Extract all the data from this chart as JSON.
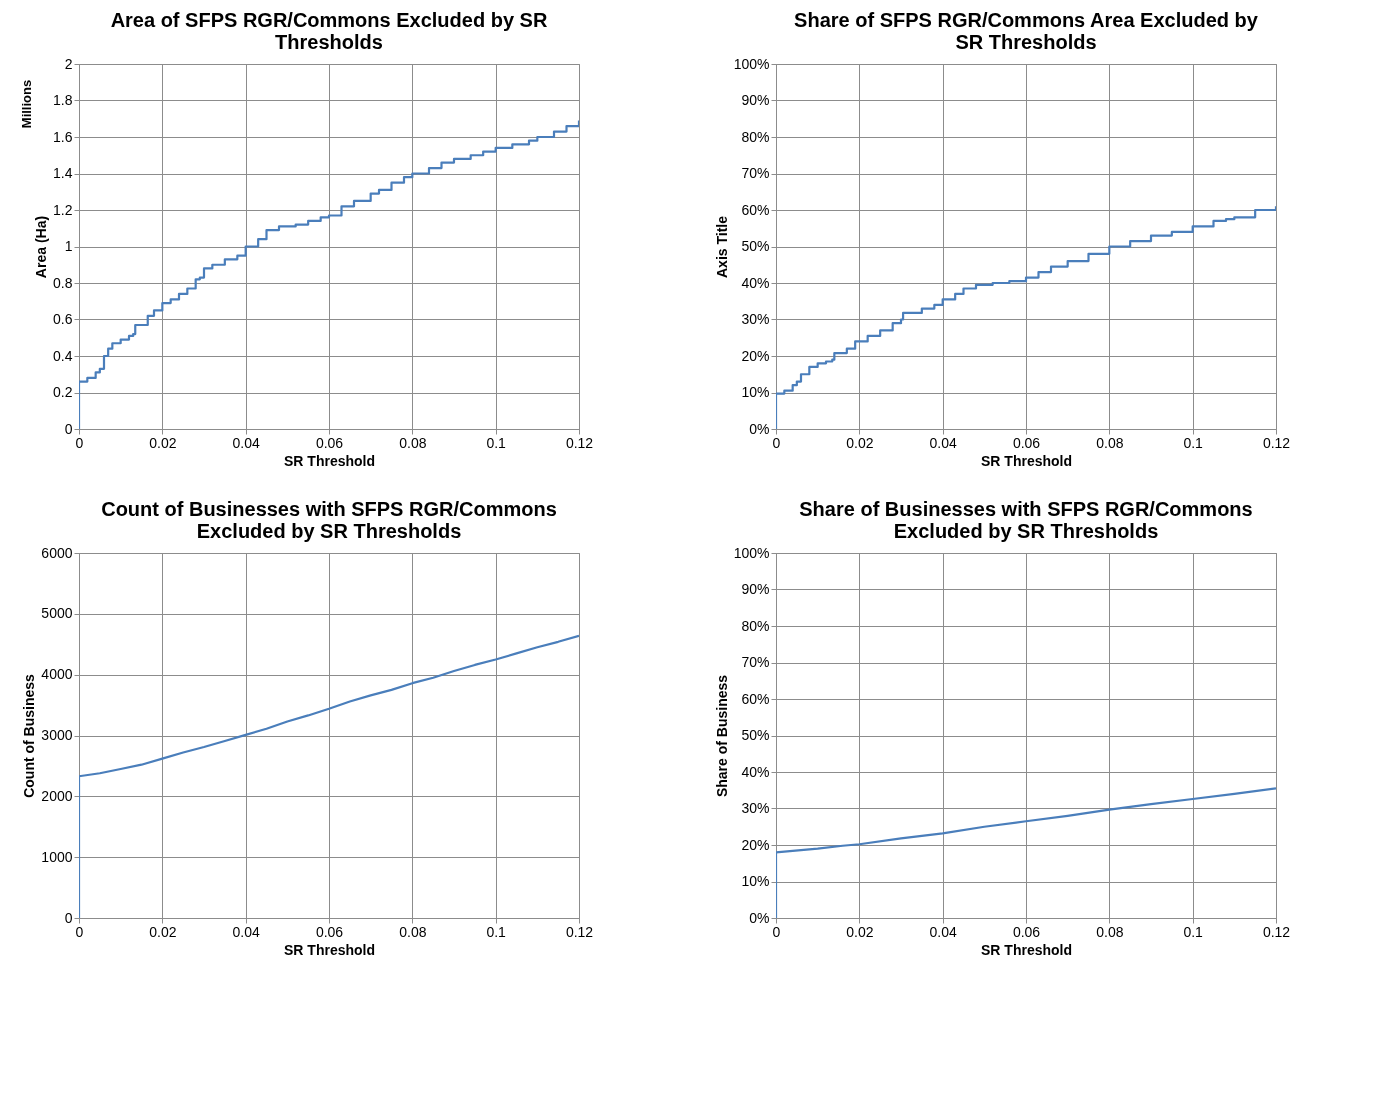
{
  "chart_data": [
    {
      "type": "step",
      "title": "Area of SFPS RGR/Commons  Excluded by SR Thresholds",
      "xlabel": "SR Threshold",
      "ylabel": "Area (Ha)",
      "annotations": [
        "Millions"
      ],
      "grid": true,
      "xlim": [
        0,
        0.12
      ],
      "xticks": [
        0,
        0.02,
        0.04,
        0.06,
        0.08,
        0.1,
        0.12
      ],
      "ylim": [
        0,
        2
      ],
      "yticks": [
        0,
        0.2,
        0.4,
        0.6,
        0.8,
        1,
        1.2,
        1.4,
        1.6,
        1.8,
        2
      ],
      "series": [
        {
          "color": "#4a7ebb",
          "x": [
            0,
            0,
            0.002,
            0.004,
            0.005,
            0.006,
            0.007,
            0.008,
            0.01,
            0.012,
            0.013,
            0.0135,
            0.016,
            0.0165,
            0.018,
            0.02,
            0.022,
            0.024,
            0.026,
            0.028,
            0.029,
            0.03,
            0.032,
            0.035,
            0.038,
            0.04,
            0.043,
            0.045,
            0.048,
            0.052,
            0.055,
            0.058,
            0.06,
            0.063,
            0.066,
            0.07,
            0.072,
            0.075,
            0.078,
            0.08,
            0.084,
            0.087,
            0.09,
            0.094,
            0.097,
            0.1,
            0.104,
            0.108,
            0.11,
            0.114,
            0.117,
            0.12
          ],
          "values": [
            0,
            0.26,
            0.28,
            0.31,
            0.33,
            0.4,
            0.44,
            0.47,
            0.49,
            0.51,
            0.52,
            0.57,
            0.57,
            0.62,
            0.65,
            0.69,
            0.71,
            0.74,
            0.77,
            0.82,
            0.83,
            0.88,
            0.9,
            0.93,
            0.95,
            1.0,
            1.04,
            1.09,
            1.11,
            1.12,
            1.14,
            1.16,
            1.17,
            1.22,
            1.25,
            1.29,
            1.31,
            1.35,
            1.38,
            1.4,
            1.43,
            1.46,
            1.48,
            1.5,
            1.52,
            1.54,
            1.56,
            1.58,
            1.6,
            1.63,
            1.66,
            1.69
          ]
        }
      ]
    },
    {
      "type": "step",
      "title": "Share of SFPS RGR/Commons  Area Excluded by SR Thresholds",
      "xlabel": "SR Threshold",
      "ylabel": "Axis Title",
      "grid": true,
      "xlim": [
        0,
        0.12
      ],
      "xticks": [
        0,
        0.02,
        0.04,
        0.06,
        0.08,
        0.1,
        0.12
      ],
      "ylim": [
        0,
        100
      ],
      "yticks": [
        {
          "value": 0,
          "label": "0%"
        },
        {
          "value": 10,
          "label": "10%"
        },
        {
          "value": 20,
          "label": "20%"
        },
        {
          "value": 30,
          "label": "30%"
        },
        {
          "value": 40,
          "label": "40%"
        },
        {
          "value": 50,
          "label": "50%"
        },
        {
          "value": 60,
          "label": "60%"
        },
        {
          "value": 70,
          "label": "70%"
        },
        {
          "value": 80,
          "label": "80%"
        },
        {
          "value": 90,
          "label": "90%"
        },
        {
          "value": 100,
          "label": "100%"
        }
      ],
      "series": [
        {
          "color": "#4a7ebb",
          "x": [
            0,
            0,
            0.002,
            0.004,
            0.005,
            0.006,
            0.008,
            0.01,
            0.012,
            0.0135,
            0.014,
            0.0165,
            0.017,
            0.019,
            0.022,
            0.025,
            0.028,
            0.03,
            0.0305,
            0.035,
            0.038,
            0.04,
            0.043,
            0.045,
            0.048,
            0.052,
            0.056,
            0.06,
            0.063,
            0.066,
            0.07,
            0.075,
            0.08,
            0.085,
            0.09,
            0.095,
            0.1,
            0.105,
            0.108,
            0.11,
            0.115,
            0.12
          ],
          "values": [
            0,
            9.7,
            10.5,
            12,
            13,
            15,
            17,
            18,
            18.5,
            19,
            20.8,
            20.8,
            22,
            24,
            25.5,
            27,
            29,
            30,
            31.8,
            33,
            34,
            35.5,
            37,
            38.5,
            39.5,
            40,
            40.5,
            41.5,
            43,
            44.5,
            46,
            48,
            50,
            51.5,
            53,
            54,
            55.5,
            57,
            57.5,
            58,
            60,
            61
          ]
        }
      ]
    },
    {
      "type": "line",
      "title": "Count of Businesses with SFPS RGR/Commons Excluded by SR Thresholds",
      "xlabel": "SR Threshold",
      "ylabel": "Count of Business",
      "grid": true,
      "xlim": [
        0,
        0.12
      ],
      "xticks": [
        0,
        0.02,
        0.04,
        0.06,
        0.08,
        0.1,
        0.12
      ],
      "ylim": [
        0,
        6000
      ],
      "yticks": [
        0,
        1000,
        2000,
        3000,
        4000,
        5000,
        6000
      ],
      "series": [
        {
          "color": "#4a7ebb",
          "x": [
            0,
            0,
            0.005,
            0.01,
            0.015,
            0.02,
            0.025,
            0.03,
            0.035,
            0.04,
            0.045,
            0.05,
            0.055,
            0.06,
            0.065,
            0.07,
            0.075,
            0.08,
            0.085,
            0.09,
            0.095,
            0.1,
            0.105,
            0.11,
            0.115,
            0.12
          ],
          "values": [
            0,
            2330,
            2380,
            2450,
            2520,
            2620,
            2720,
            2810,
            2910,
            3010,
            3110,
            3230,
            3330,
            3440,
            3560,
            3660,
            3750,
            3860,
            3950,
            4060,
            4160,
            4250,
            4350,
            4450,
            4540,
            4640
          ]
        }
      ]
    },
    {
      "type": "line",
      "title": "Share of Businesses with SFPS RGR/Commons Excluded by SR Thresholds",
      "xlabel": "SR Threshold",
      "ylabel": "Share of Business",
      "grid": true,
      "xlim": [
        0,
        0.12
      ],
      "xticks": [
        0,
        0.02,
        0.04,
        0.06,
        0.08,
        0.1,
        0.12
      ],
      "ylim": [
        0,
        100
      ],
      "yticks": [
        {
          "value": 0,
          "label": "0%"
        },
        {
          "value": 10,
          "label": "10%"
        },
        {
          "value": 20,
          "label": "20%"
        },
        {
          "value": 30,
          "label": "30%"
        },
        {
          "value": 40,
          "label": "40%"
        },
        {
          "value": 50,
          "label": "50%"
        },
        {
          "value": 60,
          "label": "60%"
        },
        {
          "value": 70,
          "label": "70%"
        },
        {
          "value": 80,
          "label": "80%"
        },
        {
          "value": 90,
          "label": "90%"
        },
        {
          "value": 100,
          "label": "100%"
        }
      ],
      "series": [
        {
          "color": "#4a7ebb",
          "x": [
            0,
            0,
            0.01,
            0.016,
            0.02,
            0.03,
            0.04,
            0.05,
            0.06,
            0.07,
            0.08,
            0.09,
            0.1,
            0.11,
            0.12
          ],
          "values": [
            0,
            18,
            19,
            19.8,
            20.2,
            21.8,
            23.2,
            25,
            26.5,
            28,
            29.7,
            31.2,
            32.6,
            34,
            35.5
          ]
        }
      ]
    }
  ]
}
